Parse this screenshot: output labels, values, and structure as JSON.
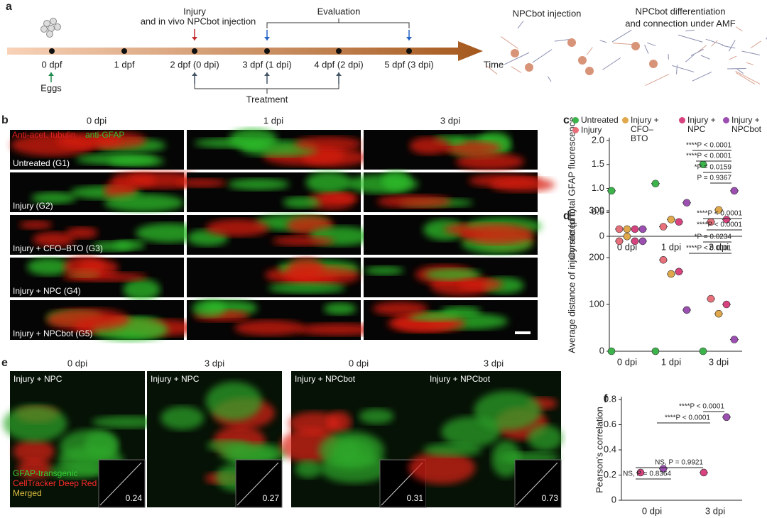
{
  "figure": {
    "panel_a": {
      "letter": "a",
      "injury_lines": [
        "Injury",
        "and in vivo NPCbot injection"
      ],
      "evaluation": "Evaluation",
      "timepoints": [
        "0 dpf",
        "1 dpf",
        "2 dpf (0 dpi)",
        "3 dpf (1 dpi)",
        "4 dpf (2 dpi)",
        "5 dpf (3 dpi)"
      ],
      "time": "Time",
      "eggs": "Eggs",
      "treatment": "Treatment",
      "injection": "NPCbot injection",
      "differentiation_lines": [
        "NPCbot differentiation",
        "and connection under AMF"
      ]
    },
    "panel_b": {
      "letter": "b",
      "columns": [
        "0 dpi",
        "1 dpi",
        "3 dpi"
      ],
      "stain_red": "Anti-acet. tubulin",
      "stain_green": "anti-GFAP",
      "rows": [
        "Untreated (G1)",
        "Injury (G2)",
        "Injury + CFO–BTO (G3)",
        "Injury + NPC (G4)",
        "Injury + NPCbot (G5)"
      ]
    },
    "panel_e": {
      "letter": "e",
      "columns": [
        "0 dpi",
        "3 dpi",
        "0 dpi",
        "3 dpi"
      ],
      "groups": [
        "Injury + NPC",
        "Injury + NPC",
        "Injury + NPCbot",
        "Injury + NPCbot"
      ],
      "correlations": [
        0.24,
        0.27,
        0.31,
        0.73
      ],
      "channels": [
        "GFAP-transgenic",
        "CellTracker Deep Red",
        "Merged"
      ]
    }
  },
  "chart_data": [
    {
      "type": "dot",
      "letter": "c",
      "y_label": "Corrected total GFAP fluorescence",
      "categories": [
        "0 dpi",
        "1 dpi",
        "3 dpi"
      ],
      "series": [
        {
          "name": "Untreated",
          "color": "#3cb44b",
          "values": [
            0.95,
            1.1,
            1.5
          ]
        },
        {
          "name": "Injury",
          "color": "#e8707a",
          "values": [
            0.15,
            0.2,
            0.3
          ]
        },
        {
          "name": "Injury + CFO–BTO",
          "color": "#e0a84a",
          "values": [
            0.15,
            0.35,
            0.55
          ]
        },
        {
          "name": "Injury + NPC",
          "color": "#d6437f",
          "values": [
            0.15,
            0.3,
            0.35
          ]
        },
        {
          "name": "Injury + NPCbot",
          "color": "#9b4fb0",
          "values": [
            0.15,
            0.7,
            0.95
          ]
        }
      ],
      "ylim": [
        0,
        2
      ],
      "yticks": [
        0,
        0.5,
        {
          "value": 1,
          "label": "1.0"
        },
        1.5,
        {
          "value": 2,
          "label": "2.0"
        }
      ],
      "annotations": [
        "****P < 0.0001",
        "****P < 0.0001",
        "*P = 0.0159",
        "P = 0.9367"
      ]
    },
    {
      "type": "dot",
      "letter": "d",
      "y_label": "Average distance of injury site (μm)",
      "categories": [
        "0 dpi",
        "1 dpi",
        "3 dpi"
      ],
      "series": [
        {
          "color": "#3cb44b",
          "values": [
            0,
            0,
            0
          ]
        },
        {
          "color": "#e8707a",
          "values": [
            235,
            195,
            112
          ]
        },
        {
          "color": "#e0a84a",
          "values": [
            245,
            165,
            80
          ]
        },
        {
          "color": "#d6437f",
          "values": [
            235,
            170,
            100
          ]
        },
        {
          "color": "#9b4fb0",
          "values": [
            235,
            88,
            25
          ]
        }
      ],
      "ylim": [
        0,
        300
      ],
      "yticks": [
        0,
        100,
        200,
        300
      ],
      "annotations": [
        "****P < 0.0001",
        "****P < 0.0001",
        "*P = 0.0234",
        "****P < 0.0001"
      ]
    },
    {
      "type": "dot",
      "letter": "f",
      "y_label": "Pearson's correlation",
      "categories": [
        "0 dpi",
        "3 dpi"
      ],
      "series": [
        {
          "color": "#d6437f",
          "values": [
            0.22,
            0.22
          ]
        },
        {
          "color": "#9b4fb0",
          "values": [
            0.25,
            0.66
          ]
        }
      ],
      "ylim": [
        0,
        0.8
      ],
      "yticks": [
        0,
        0.2,
        0.4,
        0.6,
        0.8
      ],
      "annotations": [
        "****P < 0.0001",
        "****P < 0.0001",
        "NS, P = 0.9921",
        "NS, P = 0.8364"
      ]
    }
  ]
}
